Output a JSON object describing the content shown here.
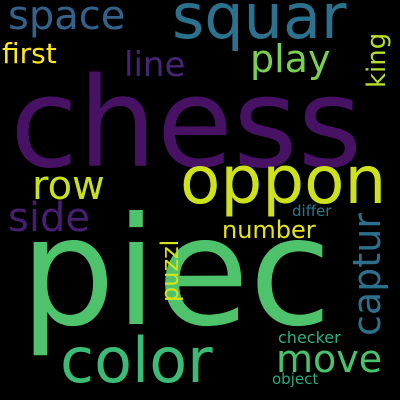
{
  "canvas": {
    "background": "#000000"
  },
  "words": {
    "chess": {
      "text": "chess",
      "color": "#471164"
    },
    "piec": {
      "text": "piec",
      "color": "#4ec36b"
    },
    "oppon": {
      "text": "oppon",
      "color": "#cde11d"
    },
    "squar": {
      "text": "squar",
      "color": "#2c728e"
    },
    "color": {
      "text": "color",
      "color": "#3bbb75"
    },
    "space": {
      "text": "space",
      "color": "#33638d"
    },
    "row": {
      "text": "row",
      "color": "#c8e020"
    },
    "side": {
      "text": "side",
      "color": "#481f70"
    },
    "move": {
      "text": "move",
      "color": "#4ac16d"
    },
    "play": {
      "text": "play",
      "color": "#7ad151"
    },
    "line": {
      "text": "line",
      "color": "#482475"
    },
    "first": {
      "text": "first",
      "color": "#fde725"
    },
    "number": {
      "text": "number",
      "color": "#e5e419"
    },
    "differ": {
      "text": "differ",
      "color": "#2a788e"
    },
    "checker": {
      "text": "checker",
      "color": "#2db27d"
    },
    "object": {
      "text": "object",
      "color": "#27ad81"
    },
    "captur": {
      "text": "captur",
      "color": "#2d708e"
    },
    "king": {
      "text": "king",
      "color": "#b5de2b"
    },
    "puzzl": {
      "text": "puzzl",
      "color": "#d8e219"
    }
  }
}
